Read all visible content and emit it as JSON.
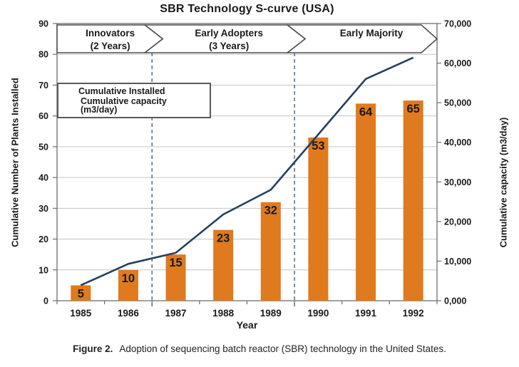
{
  "title": "SBR Technology S-curve (USA)",
  "banner_phases": [
    {
      "line1": "Innovators",
      "line2": "(2 Years)",
      "after_category_index": 1
    },
    {
      "line1": "Early Adopters",
      "line2": "(3 Years)",
      "after_category_index": 4
    },
    {
      "line1": "Early Majority",
      "line2": ""
    }
  ],
  "legend": {
    "items": [
      {
        "label": "Cumulative Installed",
        "marker": "bar-swatch"
      },
      {
        "label": "Cumulative capacity (m3/day)",
        "marker": "line-swatch"
      }
    ],
    "position": "upper-left"
  },
  "axes": {
    "x": {
      "title": "Year"
    },
    "left": {
      "title": "Cumulative Number of Plants Installed",
      "ticks": [
        "90",
        "80",
        "70",
        "60",
        "50",
        "40",
        "30",
        "20",
        "10",
        "0"
      ]
    },
    "right": {
      "title": "Cumulative capacity (m3/day)",
      "ticks": [
        "70,000",
        "60,000",
        "50,000",
        "40,000",
        "30,000",
        "20,000",
        "10,000",
        "0,000"
      ]
    }
  },
  "caption": {
    "label": "Figure 2.",
    "text": "Adoption of sequencing batch reactor (SBR) technology in the United States."
  },
  "colors": {
    "bar": "#E07A1E",
    "line": "#26415E",
    "dashed": "#5D7389",
    "grid": "#C4C4C4",
    "frame": "#6E6E6E",
    "banner_stroke": "#4D4D4D",
    "banner_fill": "#FFFFFF",
    "label_text": "#1A1A1A"
  },
  "chart_data": {
    "type": "bar+line combo",
    "categories": [
      "1985",
      "1986",
      "1987",
      "1988",
      "1989",
      "1990",
      "1991",
      "1992"
    ],
    "series": [
      {
        "name": "Cumulative Installed",
        "type": "bar",
        "axis": "left",
        "values": [
          5,
          10,
          15,
          23,
          32,
          53,
          64,
          65
        ]
      },
      {
        "name": "Cumulative capacity (m3/day)",
        "type": "line",
        "axis": "right",
        "values": [
          3900,
          9300,
          12100,
          21800,
          28000,
          42000,
          56000,
          61400
        ],
        "note": "values estimated from line position against right axis"
      }
    ],
    "bar_value_labels": [
      5,
      10,
      15,
      23,
      32,
      53,
      64,
      65
    ],
    "title": "SBR Technology S-curve (USA)",
    "xlabel": "Year",
    "ylabel_left": "Cumulative Number of Plants Installed",
    "ylabel_right": "Cumulative capacity (m3/day)",
    "ylim_left": [
      0,
      90
    ],
    "ylim_right": [
      0,
      70000
    ],
    "grid": "horizontal gridlines every 10 (left axis)",
    "legend_position": "upper-left",
    "phase_dividers": "dashed vertical lines after 1986 and after 1989"
  }
}
